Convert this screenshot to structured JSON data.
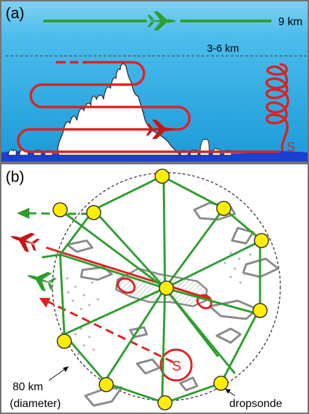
{
  "panel_a": {
    "label": "(a)",
    "altitude_high": "9 km",
    "altitude_low": "3-6 km",
    "spiral_marker": "S"
  },
  "panel_b": {
    "label": "(b)",
    "circle_label_line1": "80 km",
    "circle_label_line2": "(diameter)",
    "dropsonde_label": "dropsonde",
    "spiral_marker": "S"
  },
  "colors": {
    "sky_top": "#1f97d6",
    "sky_bottom": "#3cb6ea",
    "stratosphere": "#7fd0f2",
    "ocean": "#1b3fd0",
    "high_aircraft_track": "#2e9e2e",
    "low_aircraft_track": "#e02020",
    "dropsonde": "#ffee00",
    "cloud_outline": "#808080"
  }
}
